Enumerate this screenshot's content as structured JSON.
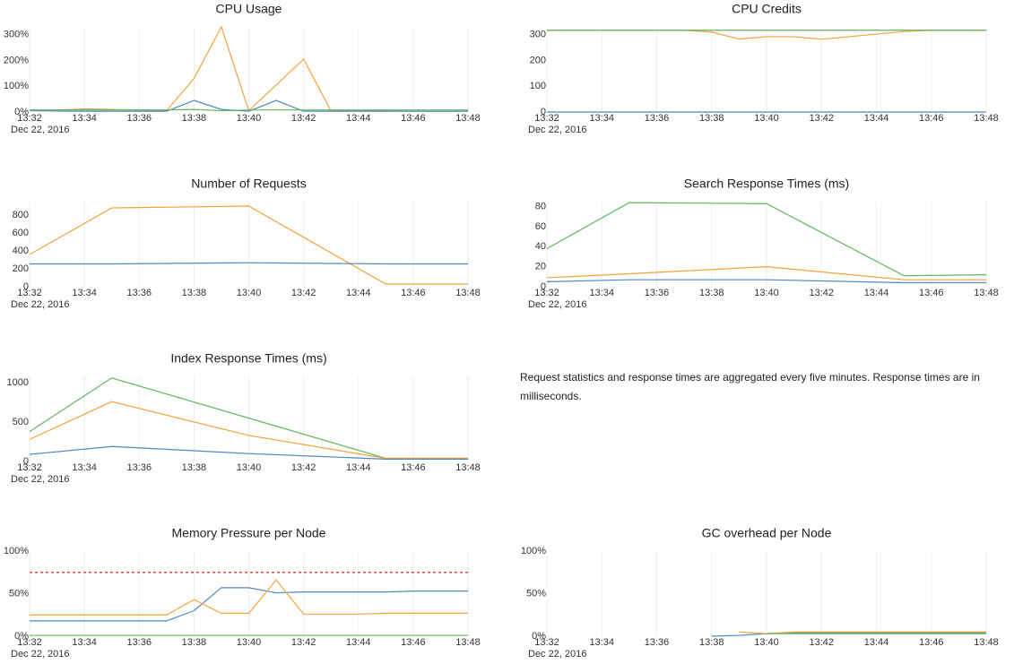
{
  "chart_data": [
    {
      "type": "line",
      "title": "CPU Usage",
      "date_label": "Dec 22, 2016",
      "x": [
        "13:32",
        "13:33",
        "13:34",
        "13:35",
        "13:36",
        "13:37",
        "13:38",
        "13:39",
        "13:40",
        "13:41",
        "13:42",
        "13:43",
        "13:44",
        "13:45",
        "13:46",
        "13:47",
        "13:48"
      ],
      "series": [
        {
          "color": "#f5a13a",
          "values": [
            5,
            8,
            12,
            10,
            8,
            5,
            130,
            330,
            5,
            105,
            205,
            5,
            5,
            5,
            3,
            3,
            3
          ]
        },
        {
          "color": "#4e87c2",
          "values": [
            5,
            4,
            3,
            3,
            3,
            3,
            45,
            10,
            3,
            45,
            3,
            3,
            3,
            3,
            3,
            3,
            3
          ]
        },
        {
          "color": "#5cb85c",
          "values": [
            8,
            8,
            8,
            8,
            8,
            8,
            10,
            5,
            8,
            8,
            8,
            8,
            8,
            8,
            8,
            8,
            8
          ]
        }
      ],
      "xlim": [
        "13:32",
        "13:48"
      ],
      "xticks": [
        "13:32",
        "13:34",
        "13:36",
        "13:38",
        "13:40",
        "13:42",
        "13:44",
        "13:46",
        "13:48"
      ],
      "xgrid": true,
      "ylim": [
        0,
        330
      ],
      "yticks": [
        {
          "value": 0,
          "label": "0%"
        },
        {
          "value": 100,
          "label": "100%"
        },
        {
          "value": 200,
          "label": "200%"
        },
        {
          "value": 300,
          "label": "300%"
        }
      ]
    },
    {
      "type": "line",
      "title": "CPU Credits",
      "date_label": "Dec 22, 2016",
      "x": [
        "13:32",
        "13:33",
        "13:34",
        "13:35",
        "13:36",
        "13:37",
        "13:38",
        "13:39",
        "13:40",
        "13:41",
        "13:42",
        "13:43",
        "13:44",
        "13:45",
        "13:46",
        "13:47",
        "13:48"
      ],
      "series": [
        {
          "color": "#f5a13a",
          "values": [
            317,
            317,
            317,
            317,
            317,
            317,
            310,
            283,
            292,
            292,
            282,
            292,
            302,
            312,
            317,
            317,
            317
          ]
        },
        {
          "color": "#4e87c2",
          "values": [
            0,
            0,
            0,
            0,
            0,
            0,
            0,
            0,
            0,
            0,
            0,
            0,
            0,
            0,
            0,
            0,
            0
          ]
        },
        {
          "color": "#5cb85c",
          "values": [
            317,
            317,
            317,
            317,
            317,
            317,
            317,
            317,
            317,
            317,
            317,
            317,
            317,
            317,
            317,
            317,
            317
          ]
        }
      ],
      "xlim": [
        "13:32",
        "13:48"
      ],
      "xticks": [
        "13:32",
        "13:34",
        "13:36",
        "13:38",
        "13:40",
        "13:42",
        "13:44",
        "13:46",
        "13:48"
      ],
      "xgrid": true,
      "ylim": [
        0,
        330
      ],
      "yticks": [
        0,
        100,
        200,
        300
      ]
    },
    {
      "type": "line",
      "title": "Number of Requests",
      "date_label": "Dec 22, 2016",
      "x": [
        "13:32",
        "13:35",
        "13:40",
        "13:45",
        "13:48"
      ],
      "series": [
        {
          "color": "#f5a13a",
          "values": [
            360,
            880,
            900,
            30,
            30
          ]
        },
        {
          "color": "#4e87c2",
          "values": [
            255,
            255,
            268,
            255,
            255
          ]
        }
      ],
      "xlim": [
        "13:32",
        "13:48"
      ],
      "xticks": [
        "13:32",
        "13:34",
        "13:36",
        "13:38",
        "13:40",
        "13:42",
        "13:44",
        "13:46",
        "13:48"
      ],
      "xgrid": true,
      "ylim": [
        0,
        950
      ],
      "yticks": [
        0,
        200,
        400,
        600,
        800
      ]
    },
    {
      "type": "line",
      "title": "Search Response Times (ms)",
      "date_label": "Dec 22, 2016",
      "x": [
        "13:32",
        "13:35",
        "13:40",
        "13:45",
        "13:48"
      ],
      "series": [
        {
          "color": "#5cb85c",
          "values": [
            38,
            84,
            83,
            11,
            12
          ]
        },
        {
          "color": "#f5a13a",
          "values": [
            9,
            13,
            20,
            7,
            7
          ]
        },
        {
          "color": "#4e87c2",
          "values": [
            5,
            7,
            7,
            4,
            4
          ]
        }
      ],
      "xlim": [
        "13:32",
        "13:48"
      ],
      "xticks": [
        "13:32",
        "13:34",
        "13:36",
        "13:38",
        "13:40",
        "13:42",
        "13:44",
        "13:46",
        "13:48"
      ],
      "xgrid": true,
      "ylim": [
        0,
        85
      ],
      "yticks": [
        0,
        20,
        40,
        60,
        80
      ]
    },
    {
      "type": "line",
      "title": "Index Response Times (ms)",
      "date_label": "Dec 22, 2016",
      "x": [
        "13:32",
        "13:35",
        "13:40",
        "13:45",
        "13:48"
      ],
      "series": [
        {
          "color": "#5cb85c",
          "values": [
            380,
            1060,
            550,
            40,
            40
          ]
        },
        {
          "color": "#f5a13a",
          "values": [
            280,
            760,
            330,
            40,
            40
          ]
        },
        {
          "color": "#4e87c2",
          "values": [
            90,
            190,
            100,
            30,
            30
          ]
        }
      ],
      "xlim": [
        "13:32",
        "13:48"
      ],
      "xticks": [
        "13:32",
        "13:34",
        "13:36",
        "13:38",
        "13:40",
        "13:42",
        "13:44",
        "13:46",
        "13:48"
      ],
      "xgrid": true,
      "ylim": [
        0,
        1080
      ],
      "yticks": [
        0,
        500,
        1000
      ]
    },
    {
      "type": "line",
      "title": "Memory Pressure per Node",
      "date_label": "Dec 22, 2016",
      "x": [
        "13:32",
        "13:33",
        "13:34",
        "13:35",
        "13:36",
        "13:37",
        "13:38",
        "13:39",
        "13:40",
        "13:41",
        "13:42",
        "13:43",
        "13:44",
        "13:45",
        "13:46",
        "13:47",
        "13:48"
      ],
      "series": [
        {
          "color": "#4e87c2",
          "values": [
            18,
            18,
            18,
            18,
            18,
            18,
            30,
            57,
            57,
            51,
            52,
            52,
            52,
            52,
            53,
            53,
            53
          ]
        },
        {
          "color": "#f5a13a",
          "values": [
            25,
            25,
            25,
            25,
            25,
            25,
            43,
            27,
            27,
            66,
            26,
            26,
            26,
            27,
            27,
            27,
            27
          ]
        },
        {
          "color": "#5cb85c",
          "values": [
            1,
            1,
            1,
            1,
            1,
            1,
            1,
            1,
            1,
            1,
            1,
            1,
            1,
            1,
            1,
            1,
            1
          ]
        }
      ],
      "threshold": {
        "value": 75,
        "color": "#e8474b"
      },
      "xlim": [
        "13:32",
        "13:48"
      ],
      "xticks": [
        "13:32",
        "13:34",
        "13:36",
        "13:38",
        "13:40",
        "13:42",
        "13:44",
        "13:46",
        "13:48"
      ],
      "xgrid": true,
      "ylim": [
        0,
        100
      ],
      "yticks": [
        {
          "value": 0,
          "label": "0%"
        },
        {
          "value": 50,
          "label": "50%"
        },
        {
          "value": 100,
          "label": "100%"
        }
      ]
    },
    {
      "type": "line",
      "title": "GC overhead per Node",
      "date_label": "Dec 22, 2016",
      "x": [
        "13:32",
        "13:33",
        "13:34",
        "13:35",
        "13:36",
        "13:37",
        "13:38",
        "13:39",
        "13:40",
        "13:41",
        "13:42",
        "13:43",
        "13:44",
        "13:45",
        "13:46",
        "13:47",
        "13:48"
      ],
      "series": [
        {
          "color": "#4e87c2",
          "values": [
            null,
            null,
            null,
            null,
            null,
            null,
            0,
            1,
            3,
            4,
            4,
            4,
            4,
            4,
            4,
            4,
            4
          ]
        },
        {
          "color": "#f5a13a",
          "values": [
            null,
            null,
            null,
            null,
            null,
            null,
            null,
            5,
            3,
            5,
            5,
            5,
            5,
            5,
            5,
            5,
            5
          ]
        },
        {
          "color": "#5cb85c",
          "values": [
            null,
            null,
            null,
            null,
            null,
            null,
            null,
            null,
            3,
            3,
            3,
            3,
            3,
            3,
            3,
            3,
            3
          ]
        }
      ],
      "xlim": [
        "13:32",
        "13:48"
      ],
      "xticks": [
        "13:32",
        "13:34",
        "13:36",
        "13:38",
        "13:40",
        "13:42",
        "13:44",
        "13:46",
        "13:48"
      ],
      "xgrid": true,
      "ylim": [
        0,
        100
      ],
      "yticks": [
        {
          "value": 0,
          "label": "0%"
        },
        {
          "value": 50,
          "label": "50%"
        },
        {
          "value": 100,
          "label": "100%"
        }
      ]
    }
  ],
  "note": "Request statistics and response times are aggregated every five minutes. Response times are in milliseconds."
}
